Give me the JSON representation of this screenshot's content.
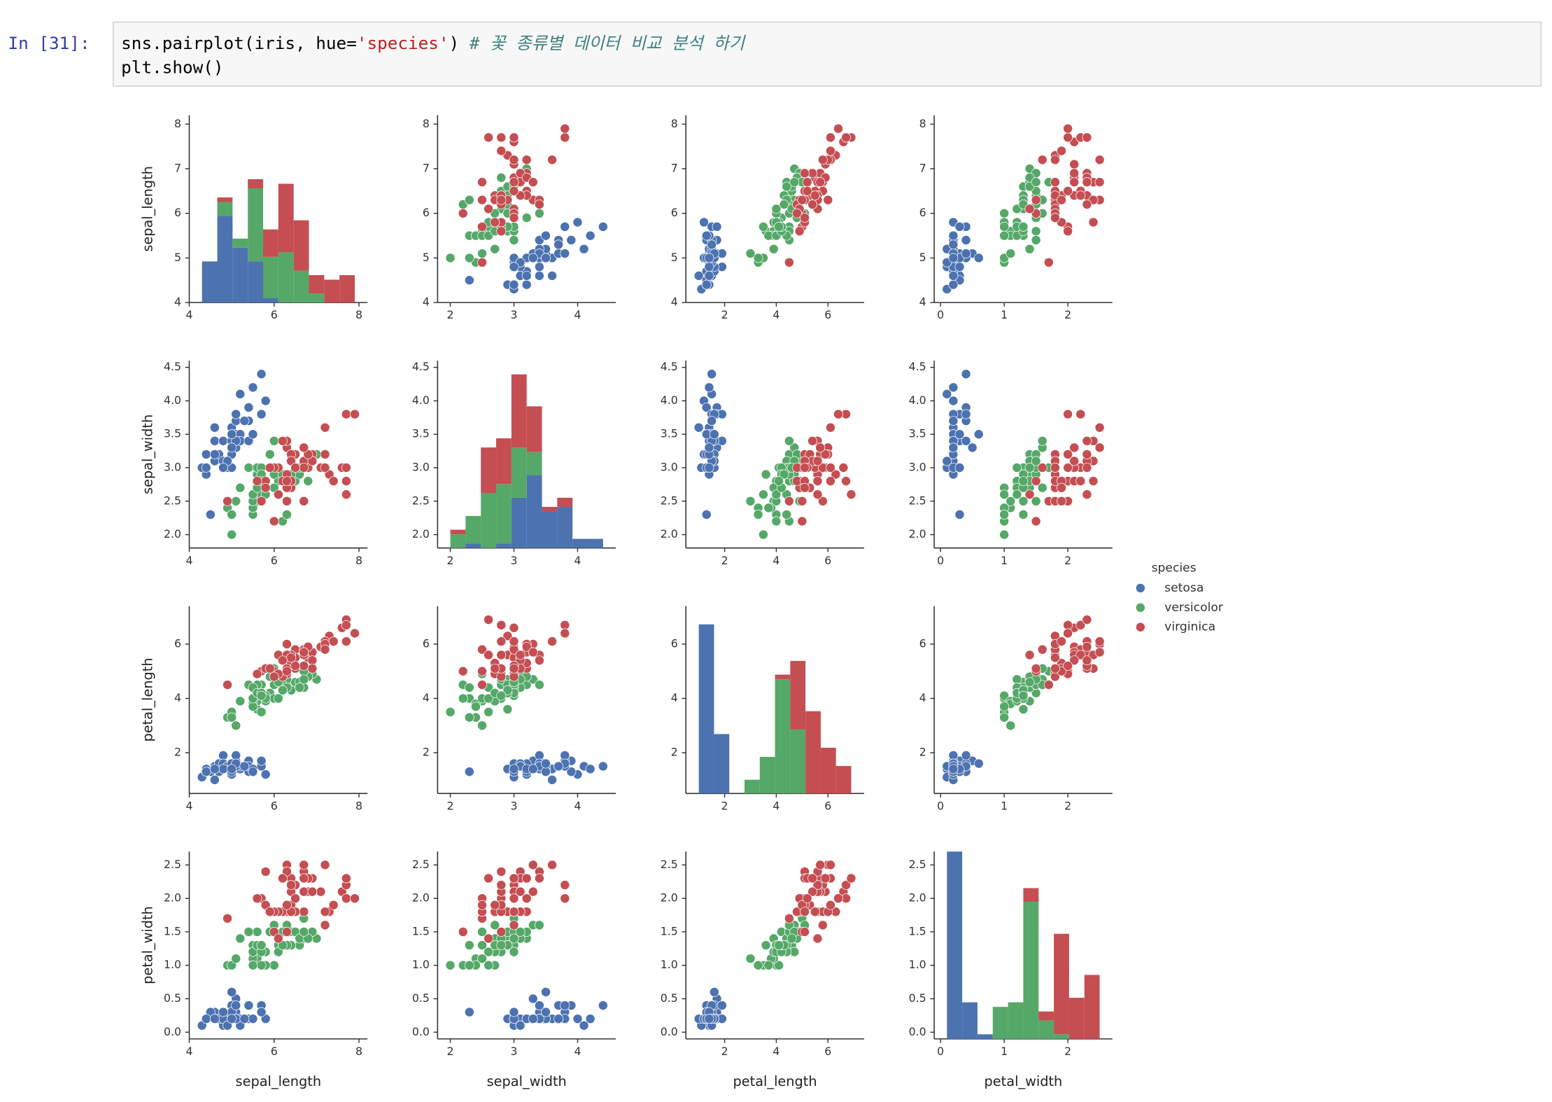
{
  "cell": {
    "prompt": "In [31]:",
    "code": [
      [
        "sns.pairplot(iris, hue=",
        "'species'",
        ") ",
        "# 꽃 종류별 데이터 비교 분석 하기"
      ],
      [
        "plt.show()"
      ]
    ]
  },
  "chart_data": {
    "type": "pairplot",
    "legend_title": "species",
    "hist_ylim": [
      0,
      41
    ],
    "variables": [
      {
        "name": "sepal_length",
        "lim": [
          4.0,
          8.2
        ],
        "xticks": [
          4,
          6,
          8
        ],
        "yticks": [
          4,
          5,
          6,
          7,
          8
        ],
        "bins": [
          4.3,
          4.66,
          5.02,
          5.38,
          5.74,
          6.1,
          6.46,
          6.82,
          7.18,
          7.54,
          7.9
        ]
      },
      {
        "name": "sepal_width",
        "lim": [
          1.8,
          4.6
        ],
        "xticks": [
          2,
          3,
          4
        ],
        "yticks": [
          {
            "value": 2,
            "label": "2.0"
          },
          2.5,
          {
            "value": 3,
            "label": "3.0"
          },
          3.5,
          {
            "value": 4,
            "label": "4.0"
          },
          4.5
        ],
        "bins": [
          2.0,
          2.24,
          2.48,
          2.72,
          2.96,
          3.2,
          3.44,
          3.68,
          3.92,
          4.16,
          4.4
        ]
      },
      {
        "name": "petal_length",
        "lim": [
          0.5,
          7.4
        ],
        "xticks": [
          2,
          4,
          6
        ],
        "yticks": [
          2,
          4,
          6
        ],
        "bins": [
          1.0,
          1.59,
          2.18,
          2.77,
          3.36,
          3.95,
          4.54,
          5.13,
          5.72,
          6.31,
          6.9
        ]
      },
      {
        "name": "petal_width",
        "lim": [
          -0.1,
          2.7
        ],
        "xticks": [
          0,
          1,
          2
        ],
        "yticks": [
          {
            "value": 0,
            "label": "0.0"
          },
          0.5,
          {
            "value": 1,
            "label": "1.0"
          },
          1.5,
          {
            "value": 2,
            "label": "2.0"
          },
          2.5
        ],
        "bins": [
          0.1,
          0.34,
          0.58,
          0.82,
          1.06,
          1.3,
          1.54,
          1.78,
          2.02,
          2.26,
          2.5
        ]
      }
    ],
    "series": [
      {
        "name": "setosa",
        "color": "#4c72b0",
        "values": {
          "sepal_length": [
            5.1,
            4.9,
            4.7,
            4.6,
            5.0,
            5.4,
            4.6,
            5.0,
            4.4,
            4.9,
            5.4,
            4.8,
            4.8,
            4.3,
            5.8,
            5.7,
            5.4,
            5.1,
            5.7,
            5.1,
            5.4,
            5.1,
            4.6,
            5.1,
            4.8,
            5.0,
            5.0,
            5.2,
            5.2,
            4.7,
            4.8,
            5.4,
            5.2,
            5.5,
            4.9,
            5.0,
            5.5,
            4.9,
            4.4,
            5.1,
            5.0,
            4.5,
            4.4,
            5.0,
            5.1,
            4.8,
            5.1,
            4.6,
            5.3,
            5.0
          ],
          "sepal_width": [
            3.5,
            3.0,
            3.2,
            3.1,
            3.6,
            3.9,
            3.4,
            3.4,
            2.9,
            3.1,
            3.7,
            3.4,
            3.0,
            3.0,
            4.0,
            4.4,
            3.9,
            3.5,
            3.8,
            3.8,
            3.4,
            3.7,
            3.6,
            3.3,
            3.4,
            3.0,
            3.4,
            3.5,
            3.4,
            3.2,
            3.1,
            3.4,
            4.1,
            4.2,
            3.1,
            3.2,
            3.5,
            3.1,
            3.0,
            3.4,
            3.5,
            2.3,
            3.2,
            3.5,
            3.8,
            3.0,
            3.8,
            3.2,
            3.7,
            3.3
          ],
          "petal_length": [
            1.4,
            1.4,
            1.3,
            1.5,
            1.4,
            1.7,
            1.4,
            1.5,
            1.4,
            1.5,
            1.5,
            1.6,
            1.4,
            1.1,
            1.2,
            1.5,
            1.3,
            1.4,
            1.7,
            1.5,
            1.7,
            1.5,
            1.0,
            1.7,
            1.9,
            1.6,
            1.6,
            1.5,
            1.4,
            1.6,
            1.6,
            1.5,
            1.5,
            1.4,
            1.5,
            1.2,
            1.3,
            1.5,
            1.3,
            1.5,
            1.3,
            1.3,
            1.3,
            1.6,
            1.9,
            1.4,
            1.6,
            1.4,
            1.5,
            1.4
          ],
          "petal_width": [
            0.2,
            0.2,
            0.2,
            0.2,
            0.2,
            0.4,
            0.3,
            0.2,
            0.2,
            0.1,
            0.2,
            0.2,
            0.1,
            0.1,
            0.2,
            0.4,
            0.4,
            0.3,
            0.3,
            0.3,
            0.2,
            0.4,
            0.2,
            0.5,
            0.2,
            0.2,
            0.4,
            0.2,
            0.2,
            0.2,
            0.2,
            0.4,
            0.1,
            0.2,
            0.1,
            0.2,
            0.2,
            0.1,
            0.2,
            0.2,
            0.3,
            0.3,
            0.2,
            0.6,
            0.4,
            0.3,
            0.2,
            0.2,
            0.2,
            0.2
          ]
        },
        "counts": {
          "sepal_length": [
            9,
            19,
            12,
            9,
            1,
            0,
            0,
            0,
            0,
            0
          ],
          "sepal_width": [
            0,
            1,
            0,
            1,
            11,
            16,
            8,
            9,
            2,
            2
          ],
          "petal_length": [
            37,
            13,
            0,
            0,
            0,
            0,
            0,
            0,
            0,
            0
          ],
          "petal_width": [
            41,
            8,
            1,
            0,
            0,
            0,
            0,
            0,
            0,
            0
          ]
        }
      },
      {
        "name": "versicolor",
        "color": "#55a868",
        "values": {
          "sepal_length": [
            7.0,
            6.4,
            6.9,
            5.5,
            6.5,
            5.7,
            6.3,
            4.9,
            6.6,
            5.2,
            5.0,
            5.9,
            6.0,
            6.1,
            5.6,
            6.7,
            5.6,
            5.8,
            6.2,
            5.6,
            5.9,
            6.1,
            6.3,
            6.1,
            6.4,
            6.6,
            6.8,
            6.7,
            6.0,
            5.7,
            5.5,
            5.5,
            5.8,
            6.0,
            5.4,
            6.0,
            6.7,
            6.3,
            5.6,
            5.5,
            5.5,
            6.1,
            5.8,
            5.0,
            5.6,
            5.7,
            5.7,
            6.2,
            5.1,
            5.7
          ],
          "sepal_width": [
            3.2,
            3.2,
            3.1,
            2.3,
            2.8,
            2.8,
            3.3,
            2.4,
            2.9,
            2.7,
            2.0,
            3.0,
            2.2,
            2.9,
            2.9,
            3.1,
            3.0,
            2.7,
            2.2,
            2.5,
            3.2,
            2.8,
            2.5,
            2.8,
            2.9,
            3.0,
            2.8,
            3.0,
            2.9,
            2.6,
            2.4,
            2.4,
            2.7,
            2.7,
            3.0,
            3.4,
            3.1,
            2.3,
            3.0,
            2.5,
            2.6,
            3.0,
            2.6,
            2.3,
            2.7,
            3.0,
            2.9,
            2.9,
            2.5,
            2.8
          ],
          "petal_length": [
            4.7,
            4.5,
            4.9,
            4.0,
            4.6,
            4.5,
            4.7,
            3.3,
            4.6,
            3.9,
            3.5,
            4.2,
            4.0,
            4.7,
            3.6,
            4.4,
            4.5,
            4.1,
            4.5,
            3.9,
            4.8,
            4.0,
            4.9,
            4.7,
            4.3,
            4.4,
            4.8,
            5.0,
            4.5,
            3.5,
            3.8,
            3.7,
            3.9,
            5.1,
            4.5,
            4.5,
            4.7,
            4.4,
            4.1,
            4.0,
            4.4,
            4.6,
            4.0,
            3.3,
            4.2,
            4.2,
            4.2,
            4.3,
            3.0,
            4.1
          ],
          "petal_width": [
            1.4,
            1.5,
            1.5,
            1.3,
            1.5,
            1.3,
            1.6,
            1.0,
            1.3,
            1.4,
            1.0,
            1.5,
            1.0,
            1.4,
            1.3,
            1.4,
            1.5,
            1.0,
            1.5,
            1.1,
            1.8,
            1.3,
            1.5,
            1.2,
            1.3,
            1.4,
            1.4,
            1.7,
            1.5,
            1.0,
            1.1,
            1.0,
            1.2,
            1.6,
            1.5,
            1.6,
            1.5,
            1.3,
            1.3,
            1.3,
            1.2,
            1.4,
            1.2,
            1.0,
            1.3,
            1.2,
            1.3,
            1.3,
            1.1,
            1.3
          ]
        },
        "counts": {
          "sepal_length": [
            0,
            3,
            2,
            16,
            9,
            11,
            7,
            2,
            0,
            0
          ],
          "sepal_width": [
            3,
            6,
            12,
            13,
            11,
            5,
            0,
            0,
            0,
            0
          ],
          "petal_length": [
            0,
            0,
            0,
            3,
            8,
            25,
            14,
            0,
            0,
            0
          ],
          "petal_width": [
            0,
            0,
            0,
            7,
            8,
            30,
            4,
            1,
            0,
            0
          ]
        }
      },
      {
        "name": "virginica",
        "color": "#c44e52",
        "values": {
          "sepal_length": [
            6.3,
            5.8,
            7.1,
            6.3,
            6.5,
            7.6,
            4.9,
            7.3,
            6.7,
            7.2,
            6.5,
            6.4,
            6.8,
            5.7,
            5.8,
            6.4,
            6.5,
            7.7,
            7.7,
            6.0,
            6.9,
            5.6,
            7.7,
            6.3,
            6.7,
            7.2,
            6.2,
            6.1,
            6.4,
            7.2,
            7.4,
            7.9,
            6.4,
            6.3,
            6.1,
            7.7,
            6.3,
            6.4,
            6.0,
            6.9,
            6.7,
            6.9,
            5.8,
            6.8,
            6.7,
            6.7,
            6.3,
            6.5,
            6.2,
            5.9
          ],
          "sepal_width": [
            3.3,
            2.7,
            3.0,
            2.9,
            3.0,
            3.0,
            2.5,
            2.9,
            2.5,
            3.6,
            3.2,
            2.7,
            3.0,
            2.5,
            2.8,
            3.2,
            3.0,
            3.8,
            2.6,
            2.2,
            3.2,
            2.8,
            2.8,
            2.7,
            3.3,
            3.2,
            2.8,
            3.0,
            2.8,
            3.0,
            2.8,
            3.8,
            2.8,
            2.8,
            2.6,
            3.0,
            3.4,
            3.1,
            3.0,
            3.1,
            3.1,
            3.1,
            2.7,
            3.2,
            3.3,
            3.0,
            2.5,
            3.0,
            3.4,
            3.0
          ],
          "petal_length": [
            6.0,
            5.1,
            5.9,
            5.6,
            5.8,
            6.6,
            4.5,
            6.3,
            5.8,
            6.1,
            5.1,
            5.3,
            5.5,
            5.0,
            5.1,
            5.3,
            5.5,
            6.7,
            6.9,
            5.0,
            5.7,
            4.9,
            6.7,
            4.9,
            5.7,
            6.0,
            4.8,
            4.9,
            5.6,
            5.8,
            6.1,
            6.4,
            5.6,
            5.1,
            5.6,
            6.1,
            5.6,
            5.5,
            4.8,
            5.4,
            5.6,
            5.1,
            5.1,
            5.9,
            5.7,
            5.2,
            5.0,
            5.2,
            5.4,
            5.1
          ],
          "petal_width": [
            2.5,
            1.9,
            2.1,
            1.8,
            2.2,
            2.1,
            1.7,
            1.8,
            1.8,
            2.5,
            2.0,
            1.9,
            2.1,
            2.0,
            2.4,
            2.3,
            1.8,
            2.2,
            2.3,
            1.5,
            2.3,
            2.0,
            2.0,
            1.8,
            2.1,
            1.8,
            1.8,
            1.8,
            2.1,
            1.6,
            1.9,
            2.0,
            2.2,
            1.5,
            1.4,
            2.3,
            2.4,
            1.8,
            1.8,
            2.1,
            2.4,
            2.3,
            1.9,
            2.3,
            2.5,
            2.3,
            1.9,
            2.0,
            2.3,
            1.8
          ]
        },
        "counts": {
          "sepal_length": [
            0,
            1,
            0,
            2,
            6,
            15,
            11,
            4,
            5,
            6
          ],
          "sepal_width": [
            1,
            0,
            10,
            10,
            16,
            10,
            1,
            2,
            0,
            0
          ],
          "petal_length": [
            0,
            0,
            0,
            0,
            0,
            1,
            15,
            18,
            10,
            6
          ],
          "petal_width": [
            0,
            0,
            0,
            0,
            0,
            3,
            2,
            22,
            9,
            14
          ]
        }
      }
    ]
  }
}
